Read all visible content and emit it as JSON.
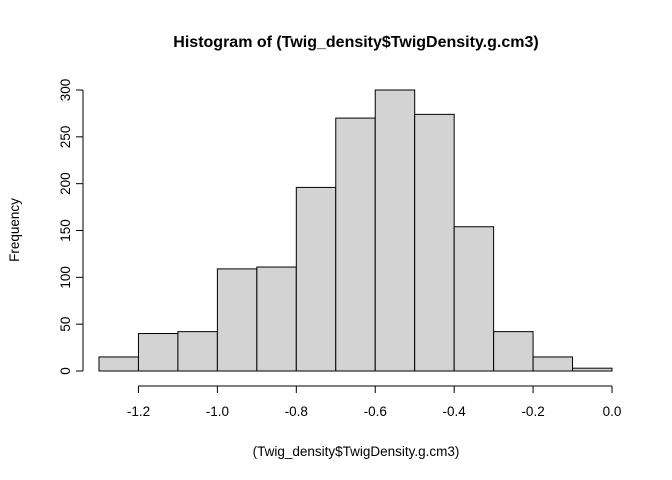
{
  "chart_data": {
    "type": "bar",
    "title": "Histogram of (Twig_density$TwigDensity.g.cm3)",
    "xlabel": "(Twig_density$TwigDensity.g.cm3)",
    "ylabel": "Frequency",
    "bin_edges": [
      -1.3,
      -1.2,
      -1.1,
      -1.0,
      -0.9,
      -0.8,
      -0.7,
      -0.6,
      -0.5,
      -0.4,
      -0.3,
      -0.2,
      -0.1,
      0.0
    ],
    "values": [
      15,
      40,
      42,
      109,
      111,
      196,
      270,
      300,
      274,
      154,
      42,
      15,
      3
    ],
    "xlim": [
      -1.3,
      0.0
    ],
    "ylim": [
      0,
      300
    ],
    "x_ticks": [
      -1.2,
      -1.0,
      -0.8,
      -0.6,
      -0.4,
      -0.2,
      0.0
    ],
    "x_tick_labels": [
      "-1.2",
      "-1.0",
      "-0.8",
      "-0.6",
      "-0.4",
      "-0.2",
      "0.0"
    ],
    "y_ticks": [
      0,
      50,
      100,
      150,
      200,
      250,
      300
    ],
    "y_tick_labels": [
      "0",
      "50",
      "100",
      "150",
      "200",
      "250",
      "300"
    ],
    "bar_fill": "#d3d3d3",
    "bar_stroke": "#000000",
    "grid": false
  }
}
